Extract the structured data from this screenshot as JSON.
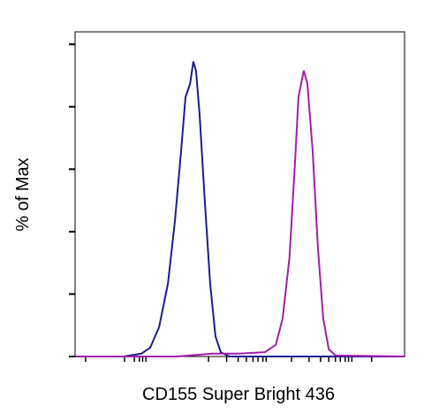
{
  "chart_data": {
    "type": "line",
    "x_label": "CD155 Super Bright 436",
    "y_label": "% of Max",
    "xlim": [
      0,
      100
    ],
    "ylim": [
      0,
      104
    ],
    "xticks": [
      3.2,
      15,
      18,
      19.5,
      20.5,
      21.5,
      40.5,
      46,
      49.5,
      52,
      54,
      55.5,
      57,
      58,
      65.7,
      71,
      74.5,
      77,
      79,
      80.5,
      82,
      83,
      84,
      90
    ],
    "yticks": [
      0,
      20,
      40,
      60,
      80,
      100
    ],
    "series": [
      {
        "color": "#1c1c8e",
        "x": [
          0,
          14.7,
          20.1,
          22.8,
          25.5,
          28.2,
          30.3,
          32.2,
          33.5,
          34.9,
          35.9,
          36.7,
          37.8,
          39.4,
          41.0,
          42.6,
          44.2,
          46.9,
          100
        ],
        "values": [
          0,
          0,
          0.9,
          2.8,
          9.4,
          23.5,
          43.3,
          66.1,
          83.1,
          87.4,
          94.5,
          91.6,
          77.4,
          49.1,
          23.5,
          6.5,
          1.4,
          0,
          0
        ]
      },
      {
        "color": "#a01fa8",
        "x": [
          0,
          30.8,
          41.6,
          49.6,
          57.6,
          60.9,
          63.0,
          65.1,
          66.8,
          67.8,
          69.4,
          70.5,
          72.1,
          73.7,
          75.3,
          77.0,
          79.1,
          100
        ],
        "values": [
          0,
          0,
          0.9,
          0.9,
          1.4,
          3.7,
          12.2,
          32.0,
          63.3,
          83.1,
          91.6,
          87.4,
          66.1,
          34.9,
          12.2,
          2.3,
          0.3,
          0
        ]
      }
    ]
  }
}
